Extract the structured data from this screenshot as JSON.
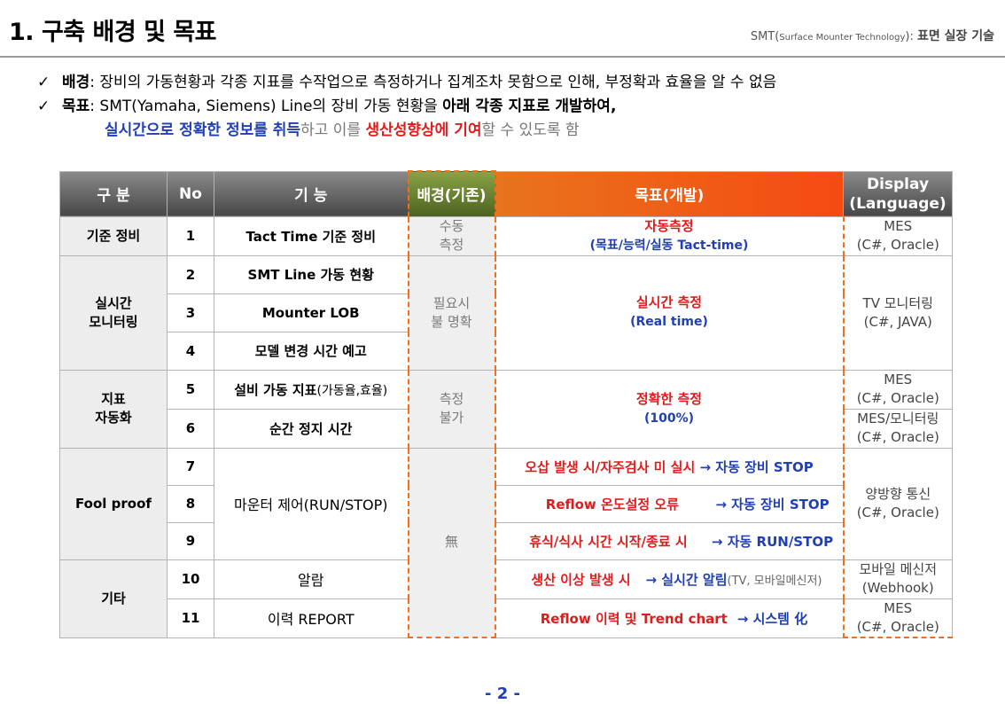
{
  "header": {
    "title": "1. 구축 배경 및 목표",
    "subtitle_prefix": "SMT(",
    "subtitle_small": "Surface Mounter Technology",
    "subtitle_suffix": "): ",
    "subtitle_bold": "표면 실장 기술"
  },
  "bullets": {
    "check_icon": "✓",
    "background_label": "배경",
    "background_text": ": 장비의 가동현황과 각종 지표를 수작업으로 측정하거나 집계조차 못함으로 인해, 부정확과 효율을 알 수 없음",
    "goal_label": "목표",
    "goal_text": ": SMT(Yamaha, Siemens) Line의 장비 가동 현황을 ",
    "goal_bold": "아래 각종 지표로 개발하여,",
    "line3_blue": "실시간으로 정확한 정보를 취득",
    "line3_gray1": "하고 이를 ",
    "line3_red": "생산성향상에 기여",
    "line3_gray2": "할 수 있도록 함"
  },
  "table": {
    "headers": {
      "category": "구 분",
      "no": "No",
      "function": "기 능",
      "background": "배경(기존)",
      "goal": "목표(개발)",
      "display_1": "Display",
      "display_2": "(Language)"
    },
    "rows": {
      "r1": {
        "cat": "기준 정비",
        "no": "1",
        "func": "Tact Time 기준 정비",
        "bg_1": "수동",
        "bg_2": "측정",
        "goal_red": "자동측정",
        "goal_blue": "(목표/능력/실동 Tact-time)",
        "disp_1": "MES",
        "disp_2": "(C#, Oracle)"
      },
      "r2": {
        "cat_1": "실시간",
        "cat_2": "모니터링",
        "no": "2",
        "func": "SMT Line 가동 현황",
        "bg_1": "필요시",
        "bg_2": "불 명확",
        "goal_red": "실시간 측정",
        "goal_blue": "(Real time)",
        "disp_1": "TV 모니터링",
        "disp_2": "(C#, JAVA)"
      },
      "r3": {
        "no": "3",
        "func": "Mounter LOB"
      },
      "r4": {
        "no": "4",
        "func": "모델 변경 시간 예고"
      },
      "r5": {
        "cat_1": "지표",
        "cat_2": "자동화",
        "no": "5",
        "func": "설비 가동 지표",
        "func_light": "(가동율,효율)",
        "bg_1": "측정",
        "bg_2": "불가",
        "goal_red": "정확한 측정",
        "goal_blue": "(100%)",
        "disp_1": "MES",
        "disp_2": "(C#, Oracle)"
      },
      "r6": {
        "no": "6",
        "func": "순간 정지 시간",
        "disp_1": "MES/모니터링",
        "disp_2": "(C#, Oracle)"
      },
      "r7": {
        "cat": "Fool proof",
        "no": "7",
        "func": "마운터 제어(RUN/STOP)",
        "bg": "無",
        "goal_red": "오삽 발생 시/자주검사 미 실시 ",
        "goal_blue": "→ 자동 장비 STOP",
        "disp_1": "양방향 통신",
        "disp_2": "(C#, Oracle)"
      },
      "r8": {
        "no": "8",
        "goal_red": "Reflow 온도설정 오류",
        "goal_blue": "→ 자동 장비 STOP"
      },
      "r9": {
        "no": "9",
        "goal_red": "휴식/식사 시간 시작/종료 시",
        "goal_blue": "→ 자동 RUN/STOP"
      },
      "r10": {
        "cat": "기타",
        "no": "10",
        "func": "알람",
        "goal_red": "생산 이상 발생 시",
        "goal_blue": "→ 실시간 알림",
        "goal_gray": "(TV, 모바일메신저)",
        "disp_1": "모바일 메신저",
        "disp_2": "(Webhook)"
      },
      "r11": {
        "no": "11",
        "func": "이력 REPORT",
        "goal_red": "Reflow 이력 및 Trend chart",
        "goal_blue": "→ 시스템 化",
        "disp_1": "MES",
        "disp_2": "(C#, Oracle)"
      }
    }
  },
  "footer": {
    "page_number": "- 2 -"
  }
}
